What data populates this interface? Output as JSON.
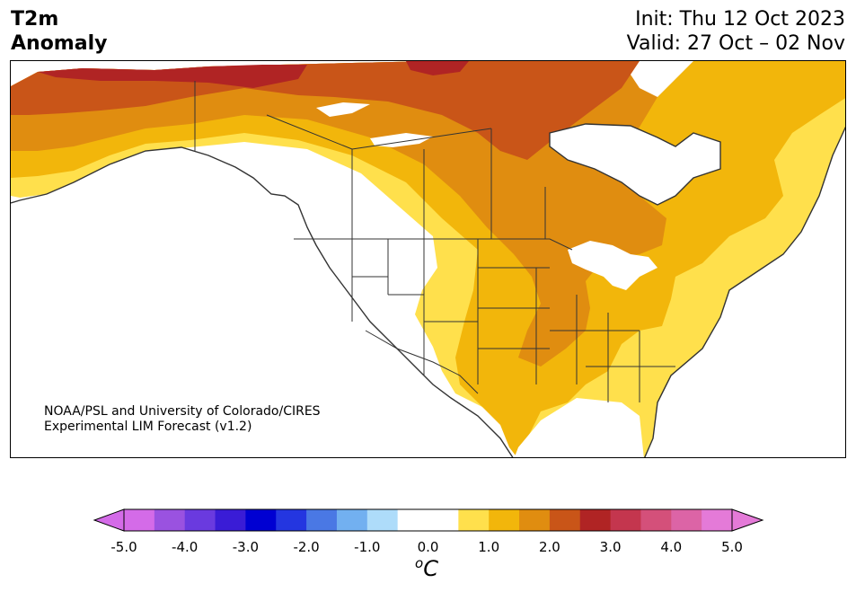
{
  "title": {
    "line1": "T2m",
    "line2": "Anomaly"
  },
  "dates": {
    "init": "Init: Thu 12 Oct 2023",
    "valid": "Valid: 27 Oct – 02 Nov"
  },
  "credit": {
    "line1": "NOAA/PSL and University of Colorado/CIRES",
    "line2": "Experimental LIM Forecast (v1.2)"
  },
  "colorbar": {
    "unit_base": "C",
    "unit_sup": "o",
    "ticks": [
      "-5.0",
      "-4.0",
      "-3.0",
      "-2.0",
      "-1.0",
      "0.0",
      "1.0",
      "2.0",
      "3.0",
      "4.0",
      "5.0"
    ],
    "levels": [
      -5.0,
      -4.5,
      -4.0,
      -3.5,
      -3.0,
      -2.5,
      -2.0,
      -1.5,
      -1.0,
      -0.5,
      0.5,
      1.0,
      1.5,
      2.0,
      2.5,
      3.0,
      3.5,
      4.0,
      4.5,
      5.0
    ],
    "colors": [
      "#d46be8",
      "#9a52e0",
      "#6a3adf",
      "#3a1cd6",
      "#0000d2",
      "#2436e0",
      "#4a78e4",
      "#72b0f0",
      "#aedcfa",
      "#ffffff",
      "#ffe04c",
      "#f2b60b",
      "#e08d10",
      "#c95518",
      "#b02424",
      "#c4364e",
      "#d4507a",
      "#dc64a6",
      "#e47ad8"
    ],
    "under_color": "#d46be8",
    "over_color": "#e47ad8"
  },
  "colors": {
    "neutral": "#ffffff",
    "a1": "#ffe04c",
    "a2": "#f2b60b",
    "a3": "#e08d10",
    "a4": "#c95518",
    "a5": "#b02424",
    "water": "#ffffff",
    "border": "#333333"
  }
}
